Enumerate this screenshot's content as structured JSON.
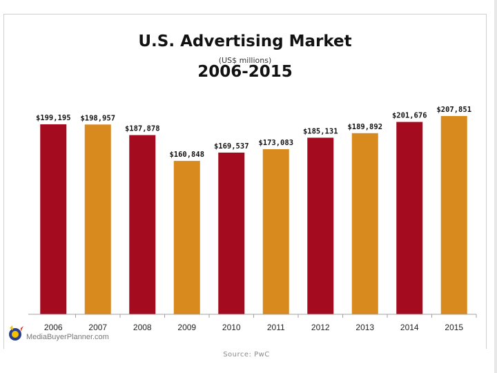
{
  "header": {
    "title": "U.S. Advertising Market",
    "subtitle": "(US$ millions)",
    "period": "2006-2015"
  },
  "watermark": "MediaBuyerPlanner.com",
  "source": "Source: PwC",
  "colors": {
    "red": "#a50b1e",
    "orange": "#d88a1f",
    "baseline": "#a0a0a0"
  },
  "chart_data": {
    "type": "bar",
    "title": "U.S. Advertising Market",
    "subtitle": "(US$ millions)",
    "categories": [
      "2006",
      "2007",
      "2008",
      "2009",
      "2010",
      "2011",
      "2012",
      "2013",
      "2014",
      "2015"
    ],
    "values": [
      199195,
      198957,
      187878,
      160848,
      169537,
      173083,
      185131,
      189892,
      201676,
      207851
    ],
    "data_labels": [
      "$199,195",
      "$198,957",
      "$187,878",
      "$160,848",
      "$169,537",
      "$173,083",
      "$185,131",
      "$189,892",
      "$201,676",
      "$207,851"
    ],
    "bar_colors": [
      "red",
      "orange",
      "red",
      "orange",
      "red",
      "orange",
      "red",
      "orange",
      "red",
      "orange"
    ],
    "xlabel": "",
    "ylabel": "",
    "ylim": [
      0,
      207851
    ],
    "grid": false
  }
}
